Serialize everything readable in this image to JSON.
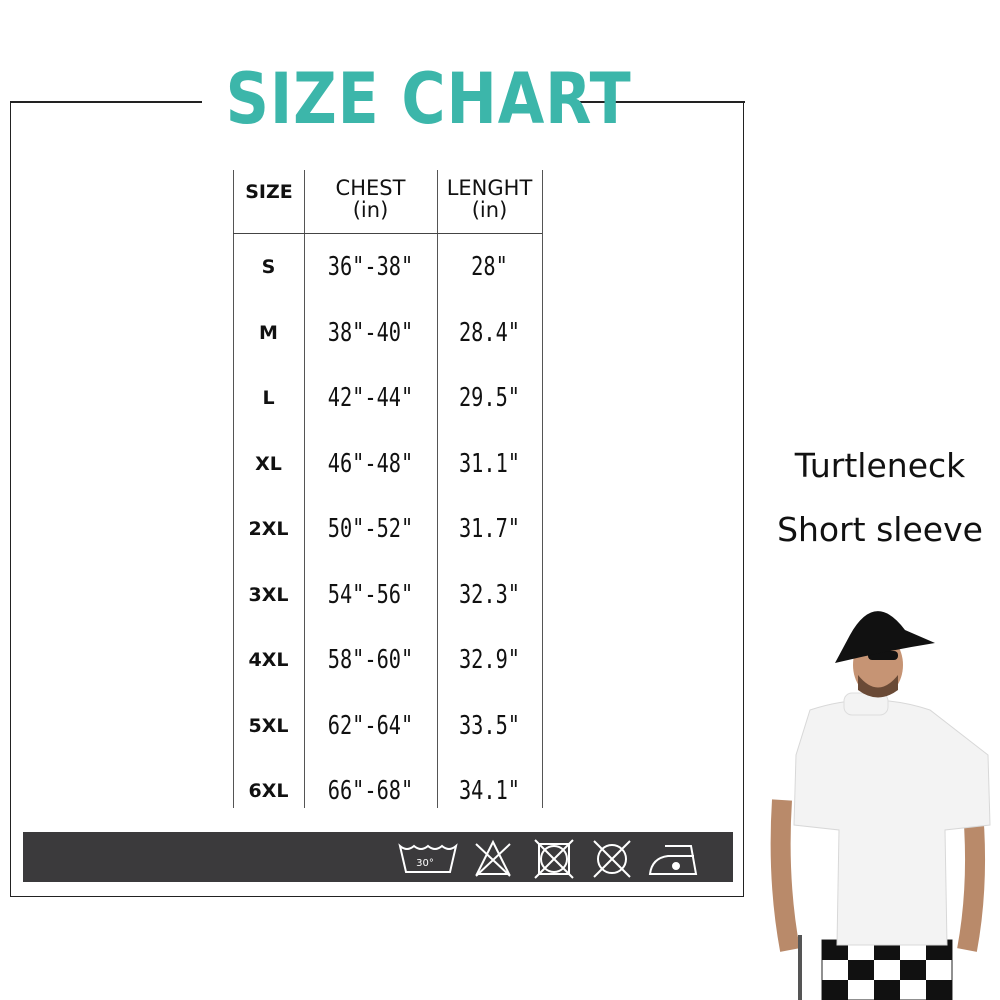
{
  "title": "SIZE CHART",
  "colors": {
    "title": "#3cb6aa",
    "care_bar": "#3b3a3c"
  },
  "table": {
    "headers": [
      {
        "label": "SIZE",
        "unit": ""
      },
      {
        "label": "CHEST",
        "unit": "(in)"
      },
      {
        "label": "LENGHT",
        "unit": "(in)"
      }
    ],
    "rows": [
      {
        "size": "S",
        "chest": "36\"-38\"",
        "length": "28\""
      },
      {
        "size": "M",
        "chest": "38\"-40\"",
        "length": "28.4\""
      },
      {
        "size": "L",
        "chest": "42\"-44\"",
        "length": "29.5\""
      },
      {
        "size": "XL",
        "chest": "46\"-48\"",
        "length": "31.1\""
      },
      {
        "size": "2XL",
        "chest": "50\"-52\"",
        "length": "31.7\""
      },
      {
        "size": "3XL",
        "chest": "54\"-56\"",
        "length": "32.3\""
      },
      {
        "size": "4XL",
        "chest": "58\"-60\"",
        "length": "32.9\""
      },
      {
        "size": "5XL",
        "chest": "62\"-64\"",
        "length": "33.5\""
      },
      {
        "size": "6XL",
        "chest": "66\"-68\"",
        "length": "34.1\""
      }
    ]
  },
  "care_icons": [
    {
      "name": "wash-30-icon",
      "label": "30°"
    },
    {
      "name": "do-not-bleach-icon"
    },
    {
      "name": "do-not-tumble-dry-icon"
    },
    {
      "name": "do-not-dry-clean-icon"
    },
    {
      "name": "iron-low-icon"
    }
  ],
  "product": {
    "line1": "Turtleneck",
    "line2": "Short sleeve"
  }
}
